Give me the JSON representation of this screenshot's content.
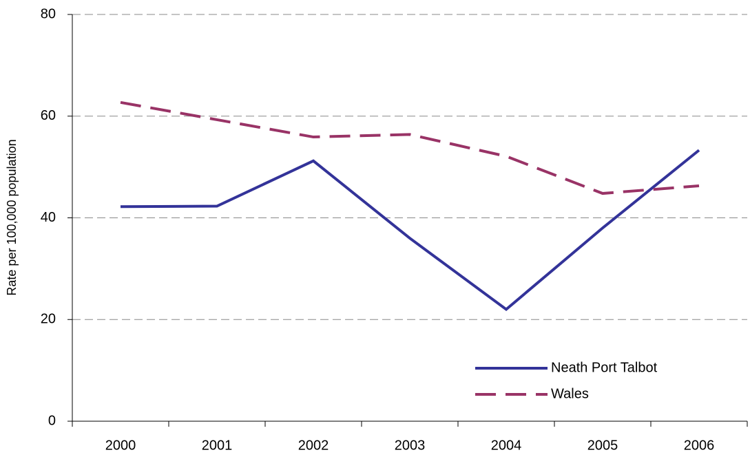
{
  "chart_data": {
    "type": "line",
    "y_label": "Rate per 100,000 population",
    "categories": [
      "2000",
      "2001",
      "2002",
      "2003",
      "2004",
      "2005",
      "2006"
    ],
    "series": [
      {
        "name": "Neath Port Talbot",
        "color": "#333399",
        "dash": "solid",
        "values": [
          42.2,
          42.3,
          51.2,
          36,
          22,
          38,
          53.3
        ]
      },
      {
        "name": "Wales",
        "color": "#993366",
        "dash": "dashed",
        "values": [
          62.7,
          59.3,
          55.9,
          56.4,
          52.1,
          44.8,
          46.3
        ]
      }
    ],
    "ylim": [
      0,
      80
    ],
    "yticks": [
      0,
      20,
      40,
      60,
      80
    ],
    "grid": true
  }
}
